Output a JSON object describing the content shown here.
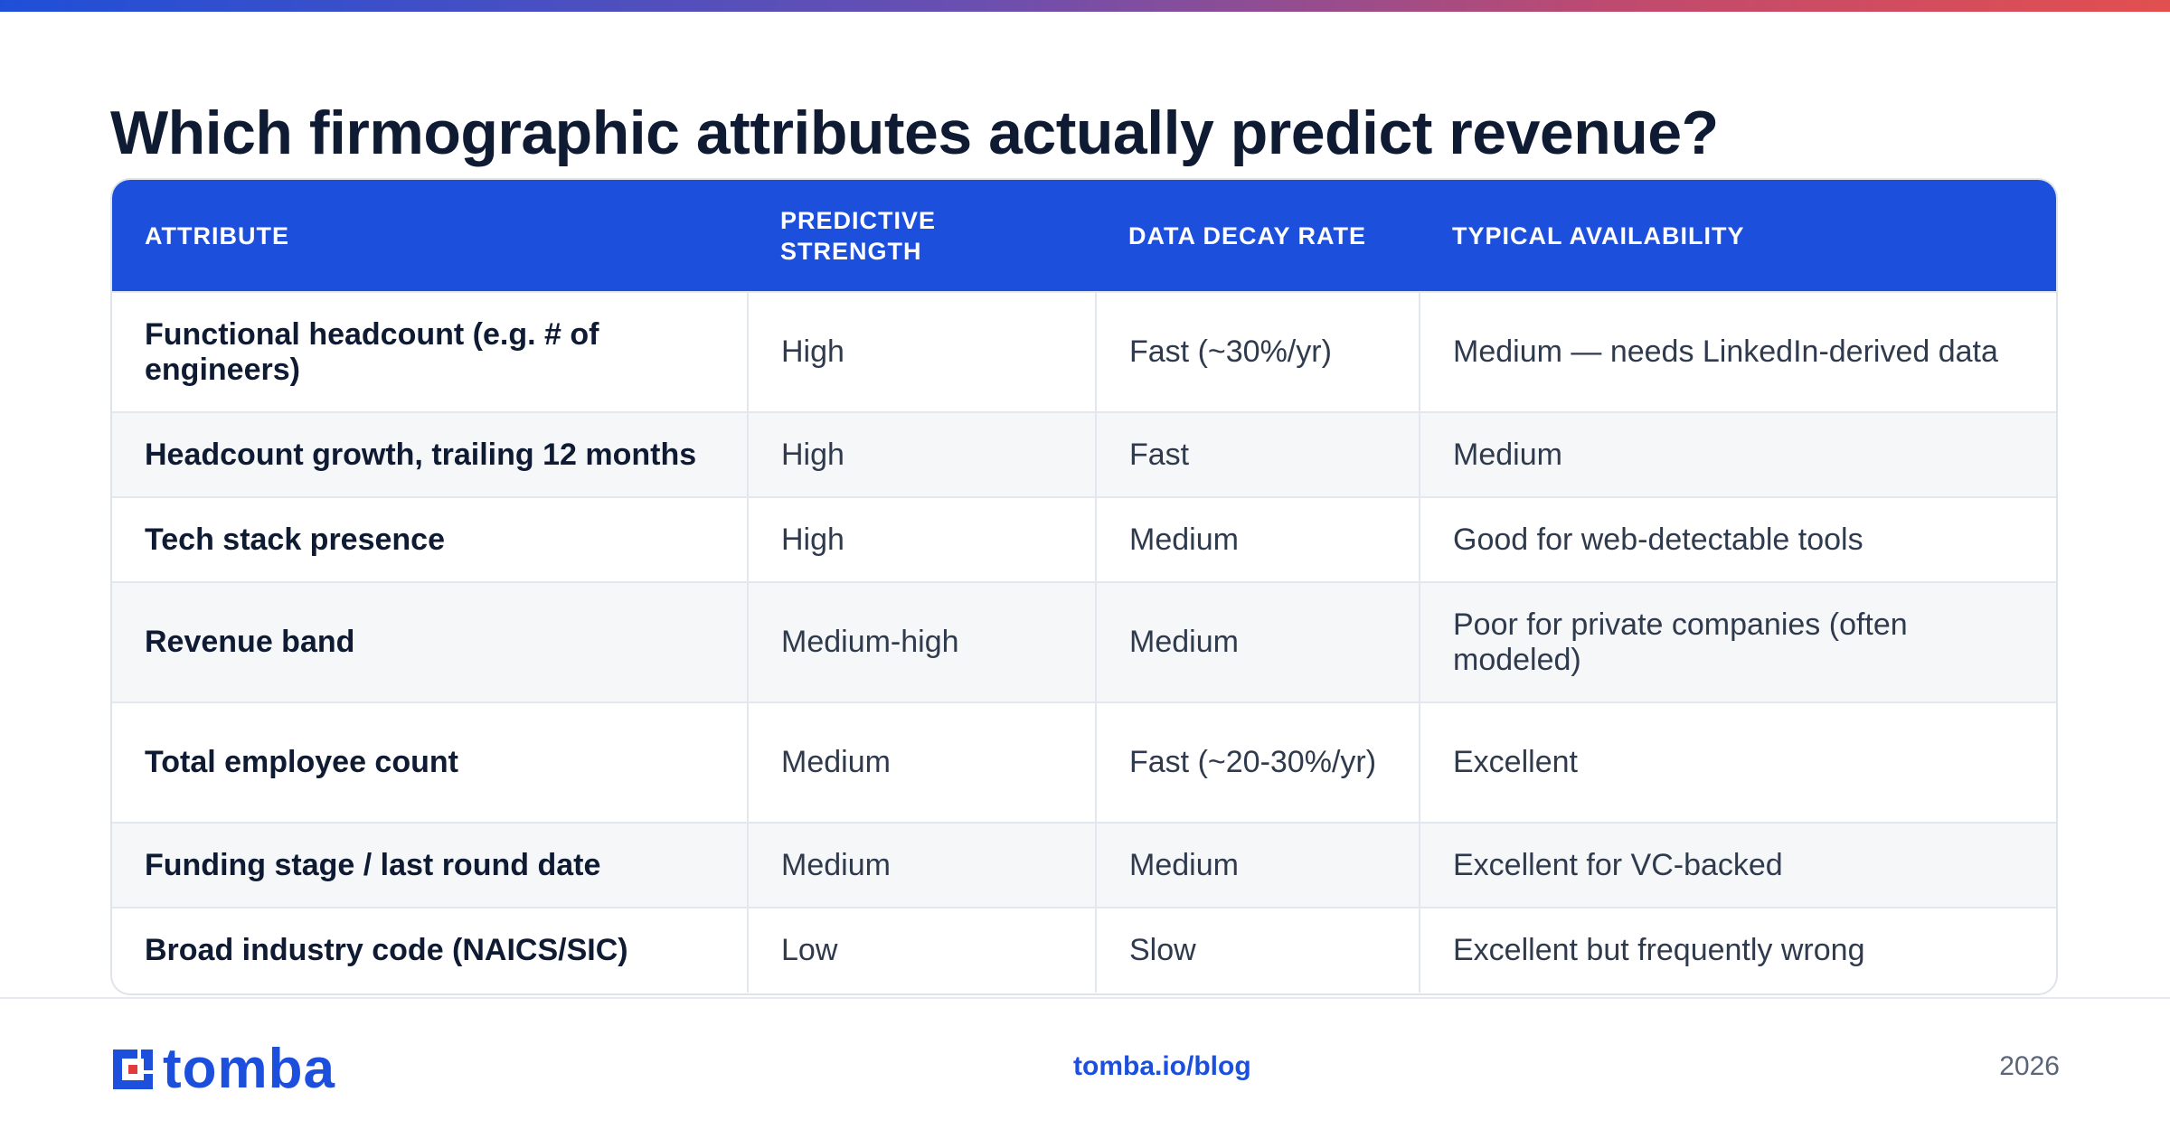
{
  "title": "Which firmographic attributes actually predict revenue?",
  "table": {
    "headers": [
      "ATTRIBUTE",
      "PREDICTIVE STRENGTH",
      "DATA DECAY RATE",
      "TYPICAL AVAILABILITY"
    ],
    "rows": [
      [
        "Functional headcount (e.g. # of engineers)",
        "High",
        "Fast (~30%/yr)",
        "Medium — needs LinkedIn-derived data"
      ],
      [
        "Headcount growth, trailing 12 months",
        "High",
        "Fast",
        "Medium"
      ],
      [
        "Tech stack presence",
        "High",
        "Medium",
        "Good for web-detectable tools"
      ],
      [
        "Revenue band",
        "Medium-high",
        "Medium",
        "Poor for private companies (often modeled)"
      ],
      [
        "Total employee count",
        "Medium",
        "Fast (~20-30%/yr)",
        "Excellent"
      ],
      [
        "Funding stage / last round date",
        "Medium",
        "Medium",
        "Excellent for VC-backed"
      ],
      [
        "Broad industry code (NAICS/SIC)",
        "Low",
        "Slow",
        "Excellent but frequently wrong"
      ]
    ]
  },
  "footer": {
    "logo_text": "tomba",
    "link": "tomba.io/blog",
    "year": "2026"
  },
  "colors": {
    "accent": "#1c4fdc",
    "title": "#0f1b33",
    "gradient": [
      "#1f4fd8",
      "#e24f4f"
    ]
  }
}
